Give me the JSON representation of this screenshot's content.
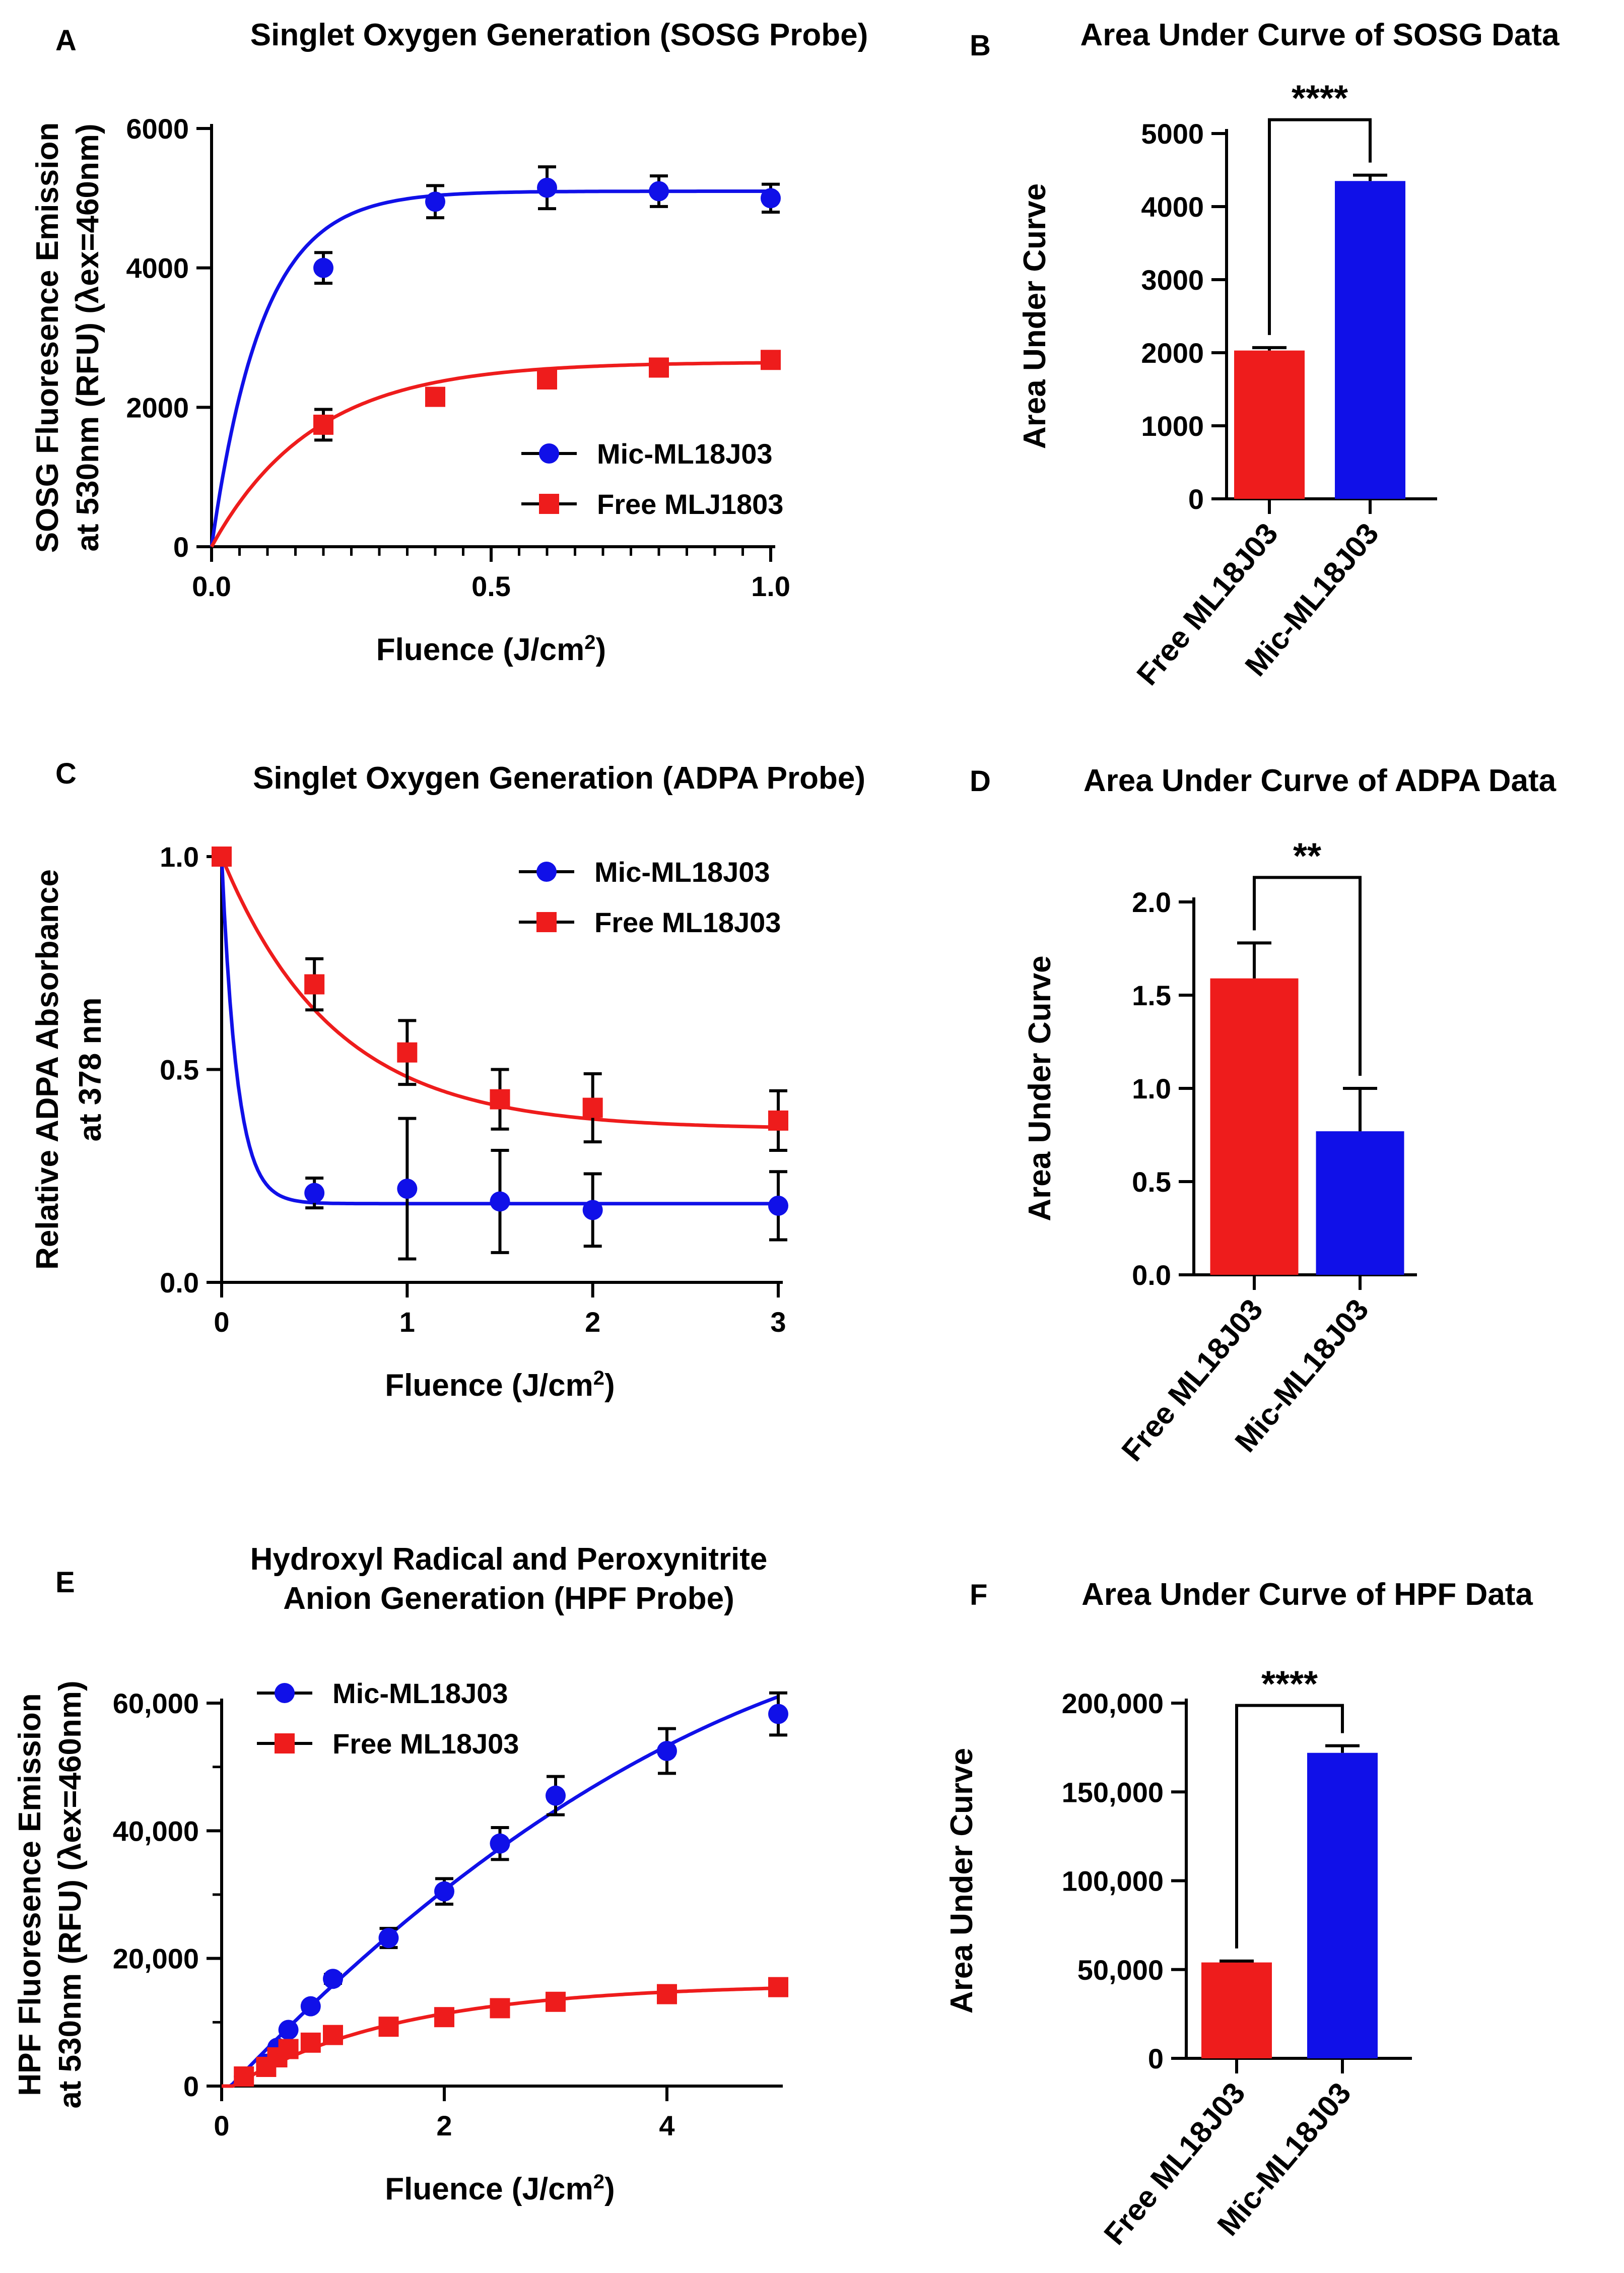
{
  "figure": {
    "panels": [
      {
        "letter": "A"
      },
      {
        "letter": "B"
      },
      {
        "letter": "C"
      },
      {
        "letter": "D"
      },
      {
        "letter": "E"
      },
      {
        "letter": "F"
      }
    ]
  },
  "colors": {
    "mic": "#1010e8",
    "free": "#ee1c1c"
  },
  "chart_data": [
    {
      "id": "A",
      "type": "line",
      "title": "Singlet Oxygen Generation (SOSG Probe)",
      "xlabel": "Fluence (J/cm",
      "xlabel_sup": "2",
      "xlabel_end": ")",
      "ylabel_line1": "SOSG Fluoresence Emission",
      "ylabel_line2": "at 530nm (RFU) (λex=460nm)",
      "xlim": [
        0,
        1.0
      ],
      "ylim": [
        0,
        6000
      ],
      "xticks": [
        "0.0",
        "0.5",
        "1.0"
      ],
      "xtick_values": [
        0,
        0.5,
        1.0
      ],
      "yticks": [
        "0",
        "2000",
        "4000",
        "6000"
      ],
      "ytick_values": [
        0,
        2000,
        4000,
        6000
      ],
      "legend": [
        "Mic-ML18J03",
        "Free MLJ1803"
      ],
      "series": [
        {
          "name": "Mic-ML18J03",
          "marker": "circle",
          "x": [
            0.2,
            0.4,
            0.6,
            0.8,
            1.0
          ],
          "y": [
            4000,
            4950,
            5150,
            5100,
            5000
          ],
          "err": [
            220,
            230,
            300,
            220,
            200
          ],
          "fit": {
            "plateau": 5100,
            "k": 11
          }
        },
        {
          "name": "Free MLJ1803",
          "marker": "square",
          "x": [
            0.2,
            0.4,
            0.6,
            0.8,
            1.0
          ],
          "y": [
            1750,
            2150,
            2400,
            2570,
            2680
          ],
          "err": [
            220,
            80,
            60,
            60,
            60
          ],
          "fit": {
            "plateau": 2650,
            "k": 5.5
          }
        }
      ]
    },
    {
      "id": "B",
      "type": "bar",
      "title": "Area Under Curve of SOSG Data",
      "ylabel": "Area Under Curve",
      "categories": [
        "Free ML18J03",
        "Mic-ML18J03"
      ],
      "values": [
        2030,
        4350
      ],
      "err": [
        40,
        80
      ],
      "ylim": [
        0,
        5000
      ],
      "yticks": [
        "0",
        "1000",
        "2000",
        "3000",
        "4000",
        "5000"
      ],
      "ytick_values": [
        0,
        1000,
        2000,
        3000,
        4000,
        5000
      ],
      "significance": "****"
    },
    {
      "id": "C",
      "type": "line",
      "title": "Singlet Oxygen Generation (ADPA Probe)",
      "xlabel": "Fluence (J/cm",
      "xlabel_sup": "2",
      "xlabel_end": ")",
      "ylabel_line1": "Relative ADPA Absorbance",
      "ylabel_line2": "at 378 nm",
      "xlim": [
        0,
        3
      ],
      "ylim": [
        0,
        1.0
      ],
      "xticks": [
        "0",
        "1",
        "2",
        "3"
      ],
      "xtick_values": [
        0,
        1,
        2,
        3
      ],
      "yticks": [
        "0.0",
        "0.5",
        "1.0"
      ],
      "ytick_values": [
        0,
        0.5,
        1.0
      ],
      "legend": [
        "Mic-ML18J03",
        "Free ML18J03"
      ],
      "series": [
        {
          "name": "Mic-ML18J03",
          "marker": "circle",
          "x": [
            0,
            0.5,
            1.0,
            1.5,
            2.0,
            3.0
          ],
          "y": [
            1.0,
            0.21,
            0.22,
            0.19,
            0.17,
            0.18
          ],
          "err": [
            0,
            0.035,
            0.165,
            0.12,
            0.085,
            0.08
          ],
          "fit": {
            "plateau": 0.185,
            "k": 12
          }
        },
        {
          "name": "Free ML18J03",
          "marker": "square",
          "x": [
            0,
            0.5,
            1.0,
            1.5,
            2.0,
            3.0
          ],
          "y": [
            1.0,
            0.7,
            0.54,
            0.43,
            0.41,
            0.38
          ],
          "err": [
            0,
            0.06,
            0.075,
            0.07,
            0.08,
            0.07
          ],
          "fit": {
            "plateau": 0.36,
            "k": 1.65
          }
        }
      ]
    },
    {
      "id": "D",
      "type": "bar",
      "title": "Area Under Curve of ADPA Data",
      "ylabel": "Area Under Curve",
      "categories": [
        "Free ML18J03",
        "Mic-ML18J03"
      ],
      "values": [
        1.59,
        0.77
      ],
      "err": [
        0.19,
        0.23
      ],
      "ylim": [
        0,
        2.0
      ],
      "yticks": [
        "0.0",
        "0.5",
        "1.0",
        "1.5",
        "2.0"
      ],
      "ytick_values": [
        0,
        0.5,
        1.0,
        1.5,
        2.0
      ],
      "significance": "**"
    },
    {
      "id": "E",
      "type": "line",
      "title_line1": "Hydroxyl Radical and Peroxynitrite",
      "title_line2": "Anion Generation (HPF Probe)",
      "xlabel": "Fluence (J/cm",
      "xlabel_sup": "2",
      "xlabel_end": ")",
      "ylabel_line1": "HPF Fluoresence Emission",
      "ylabel_line2": "at 530nm (RFU) (λex=460nm)",
      "xlim": [
        0,
        5
      ],
      "ylim": [
        0,
        60000
      ],
      "xticks": [
        "0",
        "2",
        "4"
      ],
      "xtick_values": [
        0,
        2,
        4
      ],
      "yticks": [
        "0",
        "20,000",
        "40,000",
        "60,000"
      ],
      "ytick_values": [
        0,
        20000,
        40000,
        60000
      ],
      "legend": [
        "Mic-ML18J03",
        "Free ML18J03"
      ],
      "series": [
        {
          "name": "Mic-ML18J03",
          "marker": "circle",
          "x": [
            0.2,
            0.4,
            0.5,
            0.6,
            0.8,
            1.0,
            1.5,
            2.0,
            2.5,
            3.0,
            4.0,
            5.0
          ],
          "y": [
            1500,
            3500,
            6000,
            8800,
            12500,
            16800,
            23200,
            30500,
            38000,
            45500,
            52500,
            58300
          ],
          "err": [
            0,
            0,
            0,
            0,
            500,
            700,
            1500,
            2000,
            2500,
            3000,
            3500,
            3300
          ],
          "fit": {
            "a": -1500,
            "b": 18500,
            "c": -1200
          }
        },
        {
          "name": "Free ML18J03",
          "marker": "square",
          "x": [
            0.2,
            0.4,
            0.5,
            0.6,
            0.8,
            1.0,
            1.5,
            2.0,
            2.5,
            3.0,
            4.0,
            5.0
          ],
          "y": [
            1500,
            3000,
            4500,
            5800,
            6800,
            8000,
            9300,
            10800,
            12200,
            13200,
            14400,
            15500
          ],
          "err": [
            0,
            0,
            0,
            0,
            0,
            0,
            0,
            0,
            0,
            0,
            0,
            0
          ],
          "fit": {
            "plateau": 16000,
            "k": 0.65,
            "x0": 0.1
          }
        }
      ]
    },
    {
      "id": "F",
      "type": "bar",
      "title": "Area Under Curve of HPF Data",
      "ylabel": "Area Under Curve",
      "categories": [
        "Free ML18J03",
        "Mic-ML18J03"
      ],
      "values": [
        54000,
        172000
      ],
      "err": [
        800,
        4000
      ],
      "ylim": [
        0,
        200000
      ],
      "yticks": [
        "0",
        "50,000",
        "100,000",
        "150,000",
        "200,000"
      ],
      "ytick_values": [
        0,
        50000,
        100000,
        150000,
        200000
      ],
      "significance": "****"
    }
  ]
}
